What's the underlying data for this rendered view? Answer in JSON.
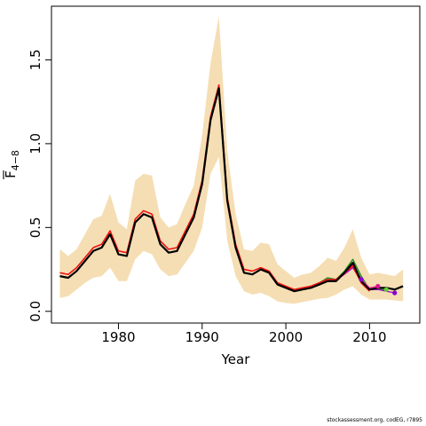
{
  "chart_data": {
    "type": "line",
    "xlabel": "Year",
    "ylabel_main": "F",
    "ylabel_sub": "4−8",
    "xlim": [
      1972,
      2016
    ],
    "ylim": [
      -0.07,
      1.82
    ],
    "xticks": [
      1980,
      1990,
      2000,
      2010
    ],
    "yticks": [
      0.0,
      0.5,
      1.0,
      1.5
    ],
    "ytick_labels": [
      "0.0",
      "0.5",
      "1.0",
      "1.5"
    ],
    "colors": {
      "band": "#f5deb3",
      "main_line": "#000000",
      "retro_green": "#228b22",
      "retro_red": "#ee1111",
      "retro_pink": "#ff3399",
      "retro_magenta": "#cc0077",
      "retro_purple": "#9900cc",
      "dot_green": "#66cc33",
      "dot_magenta": "#dd1199",
      "dot_purple": "#8800cc"
    },
    "band": {
      "x": [
        1973,
        1974,
        1975,
        1976,
        1977,
        1978,
        1979,
        1980,
        1981,
        1982,
        1983,
        1984,
        1985,
        1986,
        1987,
        1988,
        1989,
        1990,
        1991,
        1992,
        1993,
        1994,
        1995,
        1996,
        1997,
        1998,
        1999,
        2000,
        2001,
        2002,
        2003,
        2004,
        2005,
        2006,
        2007,
        2008,
        2009,
        2010,
        2011,
        2012,
        2013,
        2014
      ],
      "lower": [
        0.08,
        0.09,
        0.13,
        0.17,
        0.2,
        0.21,
        0.26,
        0.18,
        0.18,
        0.31,
        0.36,
        0.34,
        0.25,
        0.21,
        0.22,
        0.29,
        0.36,
        0.5,
        0.82,
        0.92,
        0.42,
        0.21,
        0.12,
        0.1,
        0.11,
        0.09,
        0.06,
        0.05,
        0.045,
        0.055,
        0.065,
        0.075,
        0.08,
        0.1,
        0.13,
        0.15,
        0.1,
        0.07,
        0.07,
        0.07,
        0.065,
        0.06
      ],
      "upper": [
        0.37,
        0.33,
        0.37,
        0.46,
        0.55,
        0.57,
        0.7,
        0.53,
        0.49,
        0.78,
        0.82,
        0.81,
        0.56,
        0.5,
        0.52,
        0.64,
        0.75,
        1.05,
        1.48,
        1.76,
        0.96,
        0.58,
        0.37,
        0.36,
        0.41,
        0.4,
        0.28,
        0.24,
        0.2,
        0.22,
        0.23,
        0.27,
        0.32,
        0.3,
        0.38,
        0.49,
        0.32,
        0.22,
        0.23,
        0.22,
        0.21,
        0.25
      ]
    },
    "series": [
      {
        "key": "main",
        "x": [
          1973,
          1974,
          1975,
          1976,
          1977,
          1978,
          1979,
          1980,
          1981,
          1982,
          1983,
          1984,
          1985,
          1986,
          1987,
          1988,
          1989,
          1990,
          1991,
          1992,
          1993,
          1994,
          1995,
          1996,
          1997,
          1998,
          1999,
          2000,
          2001,
          2002,
          2003,
          2004,
          2005,
          2006,
          2007,
          2008,
          2009,
          2010,
          2011,
          2012,
          2013,
          2014
        ],
        "y": [
          0.21,
          0.2,
          0.24,
          0.3,
          0.36,
          0.38,
          0.46,
          0.34,
          0.33,
          0.53,
          0.58,
          0.56,
          0.4,
          0.35,
          0.36,
          0.46,
          0.56,
          0.76,
          1.14,
          1.33,
          0.66,
          0.38,
          0.23,
          0.22,
          0.25,
          0.23,
          0.16,
          0.14,
          0.12,
          0.13,
          0.14,
          0.16,
          0.18,
          0.18,
          0.23,
          0.29,
          0.18,
          0.13,
          0.14,
          0.14,
          0.13,
          0.15
        ]
      },
      {
        "key": "retro_green",
        "x": [
          2003,
          2004,
          2005,
          2006,
          2007,
          2008,
          2009,
          2010,
          2011,
          2012
        ],
        "y": [
          0.15,
          0.17,
          0.2,
          0.19,
          0.24,
          0.31,
          0.21,
          0.13,
          0.13,
          0.13
        ]
      },
      {
        "key": "retro_red",
        "x": [
          1973,
          1974,
          1975,
          1976,
          1977,
          1978,
          1979,
          1980,
          1981,
          1982,
          1983,
          1984,
          1985,
          1986,
          1987,
          1988,
          1989,
          1990,
          1991,
          1992,
          1993,
          1994,
          1995,
          1996,
          1997,
          1998,
          1999,
          2000,
          2001,
          2002,
          2003,
          2004,
          2005,
          2006,
          2007,
          2008,
          2009,
          2010
        ],
        "y": [
          0.23,
          0.22,
          0.26,
          0.32,
          0.38,
          0.4,
          0.48,
          0.36,
          0.35,
          0.55,
          0.6,
          0.58,
          0.42,
          0.37,
          0.38,
          0.48,
          0.58,
          0.78,
          1.16,
          1.35,
          0.68,
          0.4,
          0.25,
          0.24,
          0.26,
          0.24,
          0.17,
          0.15,
          0.13,
          0.14,
          0.15,
          0.17,
          0.19,
          0.19,
          0.23,
          0.27,
          0.17,
          0.12
        ]
      },
      {
        "key": "retro_pink",
        "x": [
          2006,
          2007,
          2008,
          2009,
          2010,
          2011
        ],
        "y": [
          0.19,
          0.22,
          0.28,
          0.19,
          0.14,
          0.15
        ]
      },
      {
        "key": "retro_purple",
        "x": [
          2007,
          2008,
          2009,
          2010,
          2011,
          2012,
          2013
        ],
        "y": [
          0.22,
          0.26,
          0.18,
          0.13,
          0.13,
          0.12,
          0.11
        ]
      }
    ],
    "endpoints": [
      {
        "key": "dot_purple",
        "x": 2009,
        "y": 0.19
      },
      {
        "key": "dot_magenta",
        "x": 2011,
        "y": 0.15
      },
      {
        "key": "dot_green",
        "x": 2012,
        "y": 0.13
      },
      {
        "key": "dot_purple",
        "x": 2013,
        "y": 0.11
      }
    ]
  },
  "footnote": "stockassessment.org, codEG, r7895"
}
